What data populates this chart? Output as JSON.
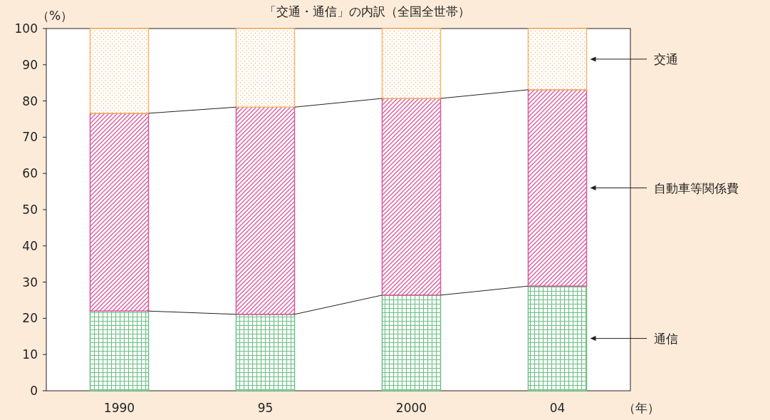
{
  "chart_data": {
    "type": "bar",
    "stacked": true,
    "title": "「交通・通信」の内訳（全国全世帯）",
    "xlabel": "（年）",
    "ylabel": "（%）",
    "categories": [
      "1990",
      "95",
      "2000",
      "04"
    ],
    "series": [
      {
        "name": "通信",
        "color": "#6cbf85",
        "values": [
          22.0,
          21.1,
          26.4,
          28.9
        ]
      },
      {
        "name": "自動車等関係費",
        "color": "#d9559b",
        "values": [
          54.6,
          57.2,
          54.3,
          54.2
        ]
      },
      {
        "name": "交通",
        "color": "#f7b56a",
        "values": [
          23.4,
          21.7,
          19.3,
          16.9
        ]
      }
    ],
    "ylim": [
      0,
      100
    ],
    "yticks": [
      0,
      10,
      20,
      30,
      40,
      50,
      60,
      70,
      80,
      90,
      100
    ],
    "grid": false
  }
}
